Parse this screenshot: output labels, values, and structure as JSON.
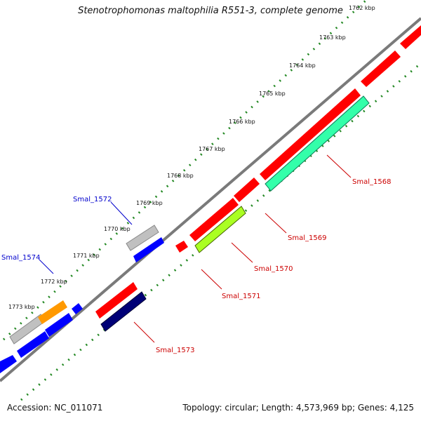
{
  "title": "Stenotrophomonas maltophilia R551-3, complete genome",
  "footer": {
    "accession": "Accession: NC_011071",
    "summary": "Topology: circular; Length: 4,573,969 bp; Genes: 4,125"
  },
  "ticks": [
    "1762 kbp",
    "1763 kbp",
    "1764 kbp",
    "1765 kbp",
    "1766 kbp",
    "1767 kbp",
    "1768 kbp",
    "1769 kbp",
    "1770 kbp",
    "1771 kbp",
    "1772 kbp",
    "1773 kbp"
  ],
  "gene_labels": [
    "Smal_1568",
    "Smal_1569",
    "Smal_1570",
    "Smal_1571",
    "Smal_1572",
    "Smal_1573",
    "Smal_1574"
  ],
  "colors": {
    "forward_gene": "#ff0000",
    "reverse_gene": "#0000ff",
    "grey_gene": "#bbbbbb",
    "orange_gene": "#ff9900",
    "cds_green": "#33ffaa",
    "cds_lime": "#bbff22",
    "cds_navy": "#000088",
    "backbone": "#777777",
    "dots": "#228822",
    "label_red": "#cc0000",
    "label_blue": "#0000cc"
  }
}
